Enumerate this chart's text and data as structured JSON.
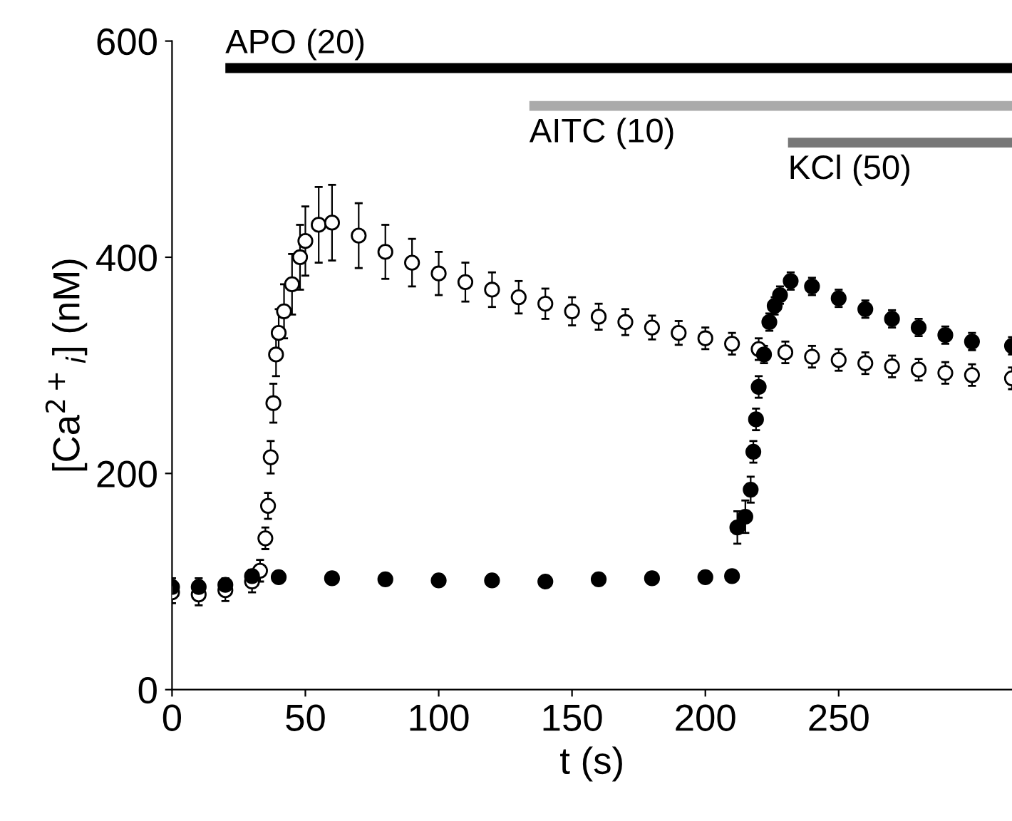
{
  "chart_data": {
    "type": "scatter",
    "xlabel": "t (s)",
    "ylabel": "[Ca$^{2+}$$_{i}$] (nM)",
    "xlim": [
      0,
      315
    ],
    "ylim": [
      0,
      600
    ],
    "xticks": [
      0,
      50,
      100,
      150,
      200,
      250
    ],
    "yticks": [
      0,
      200,
      400,
      600
    ],
    "grid": false,
    "marker": "circle",
    "annotations": [
      {
        "text": "APO (20)",
        "x": 20,
        "y": 575
      },
      {
        "text": "AITC (10)",
        "x": 134,
        "y": 540
      },
      {
        "text": "KCl (50)",
        "x": 231,
        "y": 506
      }
    ],
    "series": [
      {
        "type": "line",
        "marker": "none",
        "color": "#000000",
        "x": [
          20,
          315
        ],
        "values": [
          575,
          575
        ]
      },
      {
        "type": "line",
        "marker": "none",
        "color": "#aaaaaa",
        "x": [
          134,
          315
        ],
        "values": [
          540,
          540
        ]
      },
      {
        "type": "line",
        "marker": "none",
        "color": "#777777",
        "x": [
          231,
          315
        ],
        "values": [
          506,
          506
        ]
      },
      {
        "color": "#ffffff",
        "x": [
          0,
          10,
          20,
          30,
          33,
          35,
          36,
          37,
          38,
          39,
          40,
          42,
          45,
          48,
          50,
          55,
          60,
          70,
          80,
          90,
          100,
          110,
          120,
          130,
          140,
          150,
          160,
          170,
          180,
          190,
          200,
          210,
          220,
          230,
          240,
          250,
          260,
          270,
          280,
          290,
          300,
          315
        ],
        "values": [
          90,
          88,
          92,
          100,
          110,
          140,
          170,
          215,
          265,
          310,
          330,
          350,
          375,
          400,
          415,
          430,
          432,
          420,
          405,
          395,
          385,
          377,
          370,
          363,
          357,
          350,
          345,
          340,
          335,
          330,
          325,
          320,
          315,
          312,
          308,
          305,
          302,
          299,
          296,
          293,
          291,
          288
        ],
        "errors": [
          10,
          10,
          10,
          10,
          10,
          10,
          12,
          15,
          18,
          20,
          22,
          25,
          28,
          30,
          32,
          35,
          35,
          30,
          25,
          22,
          20,
          18,
          16,
          15,
          14,
          13,
          12,
          12,
          11,
          11,
          10,
          10,
          10,
          10,
          10,
          10,
          10,
          10,
          10,
          10,
          10,
          10
        ]
      },
      {
        "color": "#000000",
        "x": [
          0,
          10,
          20,
          30,
          40,
          60,
          80,
          100,
          120,
          140,
          160,
          180,
          200,
          210,
          212,
          215,
          217,
          218,
          219,
          220,
          222,
          224,
          226,
          228,
          232,
          240,
          250,
          260,
          270,
          280,
          290,
          300,
          315
        ],
        "values": [
          95,
          95,
          97,
          105,
          104,
          103,
          102,
          101,
          101,
          100,
          102,
          103,
          104,
          105,
          150,
          160,
          185,
          220,
          250,
          280,
          310,
          340,
          355,
          365,
          378,
          373,
          362,
          352,
          343,
          335,
          328,
          322,
          318
        ],
        "errors": [
          8,
          8,
          6,
          6,
          5,
          5,
          5,
          5,
          5,
          5,
          5,
          5,
          5,
          5,
          15,
          15,
          12,
          10,
          10,
          10,
          8,
          8,
          8,
          8,
          8,
          8,
          8,
          8,
          8,
          8,
          8,
          8,
          8
        ]
      }
    ]
  }
}
